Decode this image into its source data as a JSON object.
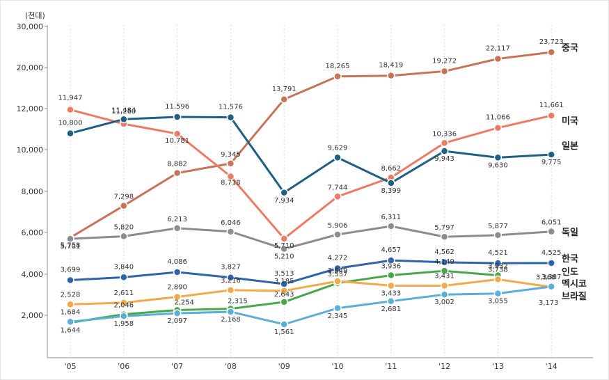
{
  "chart_data": {
    "type": "line",
    "y_unit": "(천대)",
    "categories": [
      "'05",
      "'06",
      "'07",
      "'08",
      "'09",
      "'10",
      "'11",
      "'12",
      "'13",
      "'14"
    ],
    "yticks": [
      "2,000",
      "4,000",
      "6,000",
      "8,000",
      "10,000",
      "12,000",
      "20,000",
      "30,000"
    ],
    "ytick_values": [
      2000,
      4000,
      6000,
      8000,
      10000,
      12000,
      20000,
      30000
    ],
    "note": "y-axis has a broken scale: 2,000-12,000 in 2,000 steps, then 20,000 and 30,000",
    "series": [
      {
        "name": "중국",
        "color": "#c87358",
        "values": [
          5758,
          7298,
          8882,
          9345,
          13791,
          18265,
          18419,
          19272,
          22117,
          23723
        ],
        "labels": [
          "5,758",
          "7,298",
          "8,882",
          "9,345",
          "13,791",
          "18,265",
          "18,419",
          "19,272",
          "22,117",
          "23,723"
        ]
      },
      {
        "name": "미국",
        "color": "#ec7b64",
        "values": [
          11947,
          11260,
          10781,
          8718,
          5710,
          7744,
          8662,
          10336,
          11066,
          11661
        ],
        "labels": [
          "11,947",
          "11,260",
          "10,781",
          "8,718",
          "5,710",
          "7,744",
          "8,662",
          "10,336",
          "11,066",
          "11,661"
        ]
      },
      {
        "name": "일본",
        "color": "#1f5f85",
        "values": [
          10800,
          11484,
          11596,
          11576,
          7934,
          9629,
          8399,
          9943,
          9630,
          9775
        ],
        "labels": [
          "10,800",
          "11,484",
          "11,596",
          "11,576",
          "7,934",
          "9,629",
          "8,399",
          "9,943",
          "9,630",
          "9,775"
        ]
      },
      {
        "name": "독일",
        "color": "#8c8c8c",
        "values": [
          5701,
          5820,
          6213,
          6046,
          5210,
          5906,
          6311,
          5797,
          5877,
          6051
        ],
        "labels": [
          "5,701",
          "5,820",
          "6,213",
          "6,046",
          "5,210",
          "5,906",
          "6,311",
          "5,797",
          "5,877",
          "6,051"
        ]
      },
      {
        "name": "한국",
        "color": "#2e64a8",
        "values": [
          3699,
          3840,
          4086,
          3827,
          3513,
          4272,
          4657,
          4562,
          4521,
          4525
        ],
        "labels": [
          "3,699",
          "3,840",
          "4,086",
          "3,827",
          "3,513",
          "4,272",
          "4,657",
          "4,562",
          "4,521",
          "4,525"
        ]
      },
      {
        "name": "인도",
        "color": "#48a848",
        "values": [
          1644,
          2046,
          2254,
          2315,
          2643,
          3557,
          3936,
          4149,
          3932,
          null
        ],
        "labels": [
          "1,644",
          "2,046",
          "2,254",
          "2,315",
          "2,643",
          "3,557",
          "3,936",
          "4,149",
          "3,932",
          ""
        ]
      },
      {
        "name": "멕시코",
        "color": "#f2a94a",
        "values": [
          2528,
          2611,
          2890,
          3216,
          3185,
          3649,
          3433,
          3431,
          3738,
          3368
        ],
        "labels": [
          "2,528",
          "2,611",
          "2,890",
          "3,216",
          "3,185",
          "3,649",
          "3,433",
          "3,431",
          "3,738",
          "3,368"
        ]
      },
      {
        "name": "브라질",
        "color": "#5aaed8",
        "values": [
          1684,
          1958,
          2097,
          2168,
          1561,
          2345,
          2681,
          3002,
          3055,
          3387
        ],
        "labels": [
          "1,684",
          "1,958",
          "2,097",
          "2,168",
          "1,561",
          "2,345",
          "2,681",
          "3,002",
          "3,055",
          "3,387"
        ]
      }
    ],
    "extra_labels": [
      "3,173"
    ]
  }
}
